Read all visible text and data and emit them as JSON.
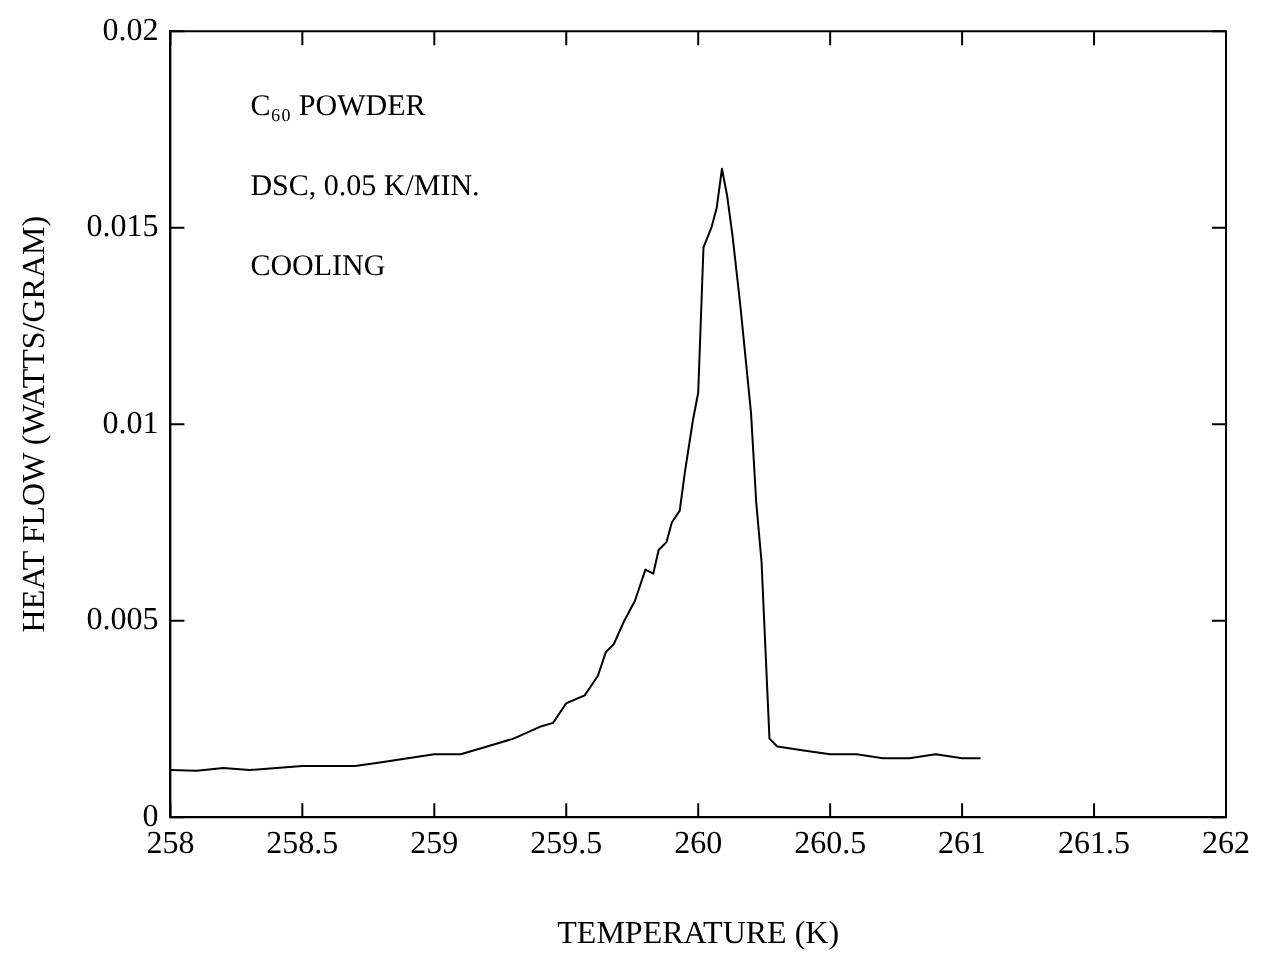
{
  "chart_data": {
    "type": "line",
    "xlabel": "TEMPERATURE (K)",
    "ylabel": "HEAT FLOW (WATTS/GRAM)",
    "annotations": [
      "C₆₀ POWDER",
      "DSC, 0.05 K/MIN.",
      "COOLING"
    ],
    "x": [
      258.0,
      258.1,
      258.2,
      258.3,
      258.5,
      258.7,
      258.8,
      259.0,
      259.1,
      259.2,
      259.3,
      259.4,
      259.45,
      259.5,
      259.57,
      259.62,
      259.65,
      259.68,
      259.72,
      259.76,
      259.8,
      259.83,
      259.85,
      259.88,
      259.9,
      259.93,
      259.95,
      259.98,
      260.0,
      260.02,
      260.05,
      260.07,
      260.09,
      260.11,
      260.13,
      260.16,
      260.2,
      260.22,
      260.24,
      260.26,
      260.27,
      260.3,
      260.4,
      260.5,
      260.6,
      260.7,
      260.8,
      260.9,
      261.0,
      261.07
    ],
    "series": [
      {
        "color": "#000000",
        "values": [
          0.0012,
          0.00118,
          0.00125,
          0.0012,
          0.0013,
          0.0013,
          0.0014,
          0.0016,
          0.0016,
          0.0018,
          0.002,
          0.0023,
          0.0024,
          0.0029,
          0.0031,
          0.0036,
          0.0042,
          0.0044,
          0.005,
          0.0055,
          0.0063,
          0.0062,
          0.0068,
          0.007,
          0.0075,
          0.0078,
          0.0088,
          0.0101,
          0.0108,
          0.0145,
          0.015,
          0.0155,
          0.0165,
          0.0158,
          0.0148,
          0.013,
          0.0103,
          0.008,
          0.0065,
          0.0035,
          0.002,
          0.0018,
          0.0017,
          0.0016,
          0.0016,
          0.0015,
          0.0015,
          0.0016,
          0.0015,
          0.0015
        ]
      }
    ],
    "xlim": [
      258,
      262
    ],
    "xticks": [
      258,
      258.5,
      259,
      259.5,
      260,
      260.5,
      261,
      261.5,
      262
    ],
    "ylim": [
      0,
      0.02
    ],
    "yticks": [
      0,
      0.005,
      0.01,
      0.015,
      0.02
    ],
    "grid": false,
    "legend": false,
    "marker": "none",
    "line_style": "solid"
  }
}
